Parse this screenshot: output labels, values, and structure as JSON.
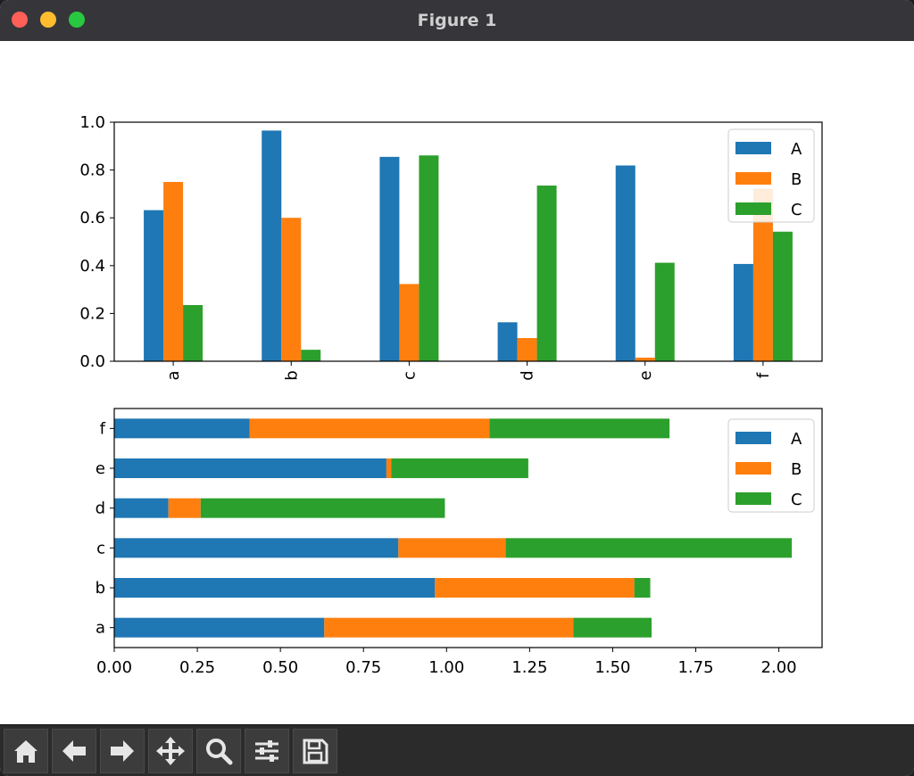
{
  "window": {
    "title": "Figure 1"
  },
  "toolbar": {
    "buttons": [
      {
        "name": "home-button",
        "icon": "home-icon"
      },
      {
        "name": "back-button",
        "icon": "arrow-left-icon"
      },
      {
        "name": "forward-button",
        "icon": "arrow-right-icon"
      },
      {
        "name": "pan-button",
        "icon": "move-icon"
      },
      {
        "name": "zoom-button",
        "icon": "search-icon"
      },
      {
        "name": "configure-subplots-button",
        "icon": "sliders-icon"
      },
      {
        "name": "save-button",
        "icon": "save-icon"
      }
    ]
  },
  "chart_data": [
    {
      "type": "bar",
      "orientation": "vertical",
      "categories": [
        "a",
        "b",
        "c",
        "d",
        "e",
        "f"
      ],
      "series": [
        {
          "name": "A",
          "color": "#1f77b4",
          "values": [
            0.632,
            0.965,
            0.855,
            0.163,
            0.819,
            0.407
          ]
        },
        {
          "name": "B",
          "color": "#ff7f0e",
          "values": [
            0.75,
            0.6,
            0.323,
            0.097,
            0.015,
            0.722
          ]
        },
        {
          "name": "C",
          "color": "#2ca02c",
          "values": [
            0.235,
            0.048,
            0.861,
            0.735,
            0.412,
            0.542
          ]
        }
      ],
      "ylim": [
        0,
        1.0
      ],
      "yticks": [
        "0.0",
        "0.2",
        "0.4",
        "0.6",
        "0.8",
        "1.0"
      ],
      "legend": "top-right",
      "grid": false,
      "xtick_rotation": 90
    },
    {
      "type": "bar",
      "orientation": "horizontal",
      "stacked": true,
      "categories": [
        "a",
        "b",
        "c",
        "d",
        "e",
        "f"
      ],
      "series": [
        {
          "name": "A",
          "color": "#1f77b4",
          "values": [
            0.632,
            0.965,
            0.855,
            0.163,
            0.819,
            0.407
          ]
        },
        {
          "name": "B",
          "color": "#ff7f0e",
          "values": [
            0.75,
            0.6,
            0.323,
            0.097,
            0.015,
            0.722
          ]
        },
        {
          "name": "C",
          "color": "#2ca02c",
          "values": [
            0.235,
            0.048,
            0.861,
            0.735,
            0.412,
            0.542
          ]
        }
      ],
      "xlim": [
        0,
        2.13
      ],
      "xticks": [
        "0.00",
        "0.25",
        "0.50",
        "0.75",
        "1.00",
        "1.25",
        "1.50",
        "1.75",
        "2.00"
      ],
      "legend": "top-right",
      "grid": false
    }
  ]
}
